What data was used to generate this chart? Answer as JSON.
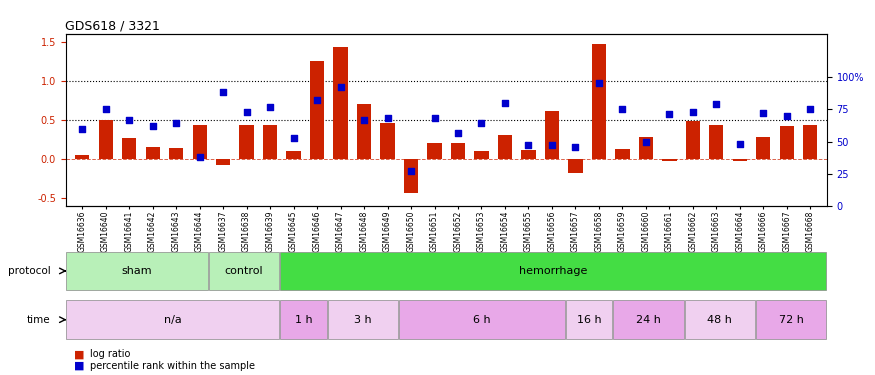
{
  "title": "GDS618 / 3321",
  "samples": [
    "GSM16636",
    "GSM16640",
    "GSM16641",
    "GSM16642",
    "GSM16643",
    "GSM16644",
    "GSM16637",
    "GSM16638",
    "GSM16639",
    "GSM16645",
    "GSM16646",
    "GSM16647",
    "GSM16648",
    "GSM16649",
    "GSM16650",
    "GSM16651",
    "GSM16652",
    "GSM16653",
    "GSM16654",
    "GSM16655",
    "GSM16656",
    "GSM16657",
    "GSM16658",
    "GSM16659",
    "GSM16660",
    "GSM16661",
    "GSM16662",
    "GSM16663",
    "GSM16664",
    "GSM16666",
    "GSM16667",
    "GSM16668"
  ],
  "log_ratio": [
    0.05,
    0.5,
    0.27,
    0.16,
    0.14,
    0.43,
    -0.08,
    0.43,
    0.43,
    0.11,
    1.25,
    1.43,
    0.71,
    0.46,
    -0.43,
    0.21,
    0.21,
    0.11,
    0.31,
    0.12,
    0.62,
    -0.17,
    1.47,
    0.13,
    0.28,
    -0.02,
    0.49,
    0.44,
    -0.02,
    0.28,
    0.42,
    0.43
  ],
  "pct_rank": [
    60,
    75,
    67,
    62,
    64,
    38,
    88,
    73,
    77,
    53,
    82,
    92,
    67,
    68,
    27,
    68,
    57,
    64,
    80,
    47,
    47,
    46,
    95,
    75,
    50,
    71,
    73,
    79,
    48,
    72,
    70,
    75
  ],
  "protocol_groups": [
    {
      "label": "sham",
      "start": 0,
      "end": 5,
      "color": "#b8f0b8"
    },
    {
      "label": "control",
      "start": 6,
      "end": 8,
      "color": "#b8f0b8"
    },
    {
      "label": "hemorrhage",
      "start": 9,
      "end": 31,
      "color": "#44dd44"
    }
  ],
  "time_groups": [
    {
      "label": "n/a",
      "start": 0,
      "end": 8,
      "color": "#f0d0f0"
    },
    {
      "label": "1 h",
      "start": 9,
      "end": 10,
      "color": "#e8a8e8"
    },
    {
      "label": "3 h",
      "start": 11,
      "end": 13,
      "color": "#f0d0f0"
    },
    {
      "label": "6 h",
      "start": 14,
      "end": 20,
      "color": "#e8a8e8"
    },
    {
      "label": "16 h",
      "start": 21,
      "end": 22,
      "color": "#f0d0f0"
    },
    {
      "label": "24 h",
      "start": 23,
      "end": 25,
      "color": "#e8a8e8"
    },
    {
      "label": "48 h",
      "start": 26,
      "end": 28,
      "color": "#f0d0f0"
    },
    {
      "label": "72 h",
      "start": 29,
      "end": 31,
      "color": "#e8a8e8"
    }
  ],
  "bar_color": "#cc2200",
  "dot_color": "#0000cc",
  "hline1": 1.0,
  "hline2": 0.5,
  "ylim_left": [
    -0.6,
    1.6
  ],
  "ylim_right": [
    0,
    133.33
  ],
  "yticks_left": [
    -0.5,
    0.0,
    0.5,
    1.0,
    1.5
  ],
  "yticks_right": [
    0,
    25,
    50,
    75,
    100
  ],
  "figsize": [
    8.75,
    3.75
  ],
  "dpi": 100
}
